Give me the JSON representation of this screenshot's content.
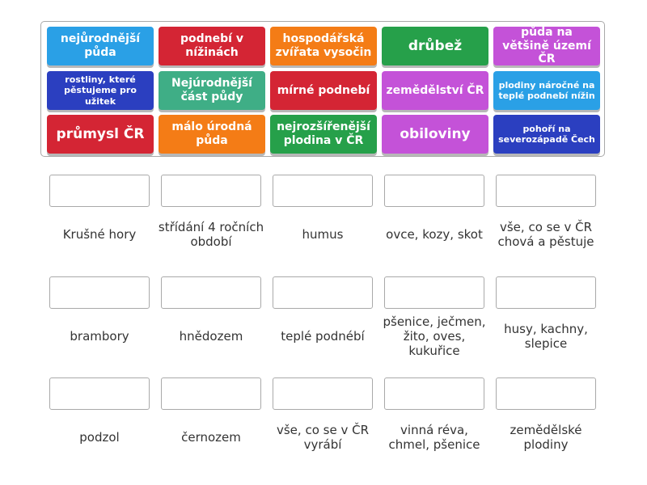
{
  "colors": {
    "blue": "#2aa0e6",
    "red": "#d42534",
    "orange": "#f47c16",
    "green": "#26a04a",
    "purple": "#c452d8",
    "darkblue": "#2b3fc0",
    "teal": "#3fae86"
  },
  "tiles": [
    {
      "text": "nejůrodnější půda",
      "color": "blue"
    },
    {
      "text": "podnebí v nížinách",
      "color": "red"
    },
    {
      "text": "hospodářská zvířata vysočin",
      "color": "orange"
    },
    {
      "text": "drůbež",
      "color": "green"
    },
    {
      "text": "půda na většině území ČR",
      "color": "purple"
    },
    {
      "text": "rostliny, které pěstujeme pro užitek",
      "color": "darkblue"
    },
    {
      "text": "Nejúrodnější část půdy",
      "color": "teal"
    },
    {
      "text": "mírné podnebí",
      "color": "red"
    },
    {
      "text": "zemědělství ČR",
      "color": "purple"
    },
    {
      "text": "plodiny náročné na teplé podnebí nížin",
      "color": "blue"
    },
    {
      "text": "průmysl ČR",
      "color": "red"
    },
    {
      "text": "málo úrodná půda",
      "color": "orange"
    },
    {
      "text": "nejrozšířenější plodina v ČR",
      "color": "green"
    },
    {
      "text": "obiloviny",
      "color": "purple"
    },
    {
      "text": "pohoří na severozápadě Čech",
      "color": "darkblue"
    }
  ],
  "labels": [
    "Krušné hory",
    "střídání 4 ročních období",
    "humus",
    "ovce, kozy, skot",
    "vše, co se v ČR chová a pěstuje",
    "brambory",
    "hnědozem",
    "teplé podnébí",
    "pšenice, ječmen, žito, oves, kukuřice",
    "husy, kachny, slepice",
    "podzol",
    "černozem",
    "vše, co se v ČR vyrábí",
    "vinná réva, chmel, pšenice",
    "zemědělské plodiny"
  ]
}
